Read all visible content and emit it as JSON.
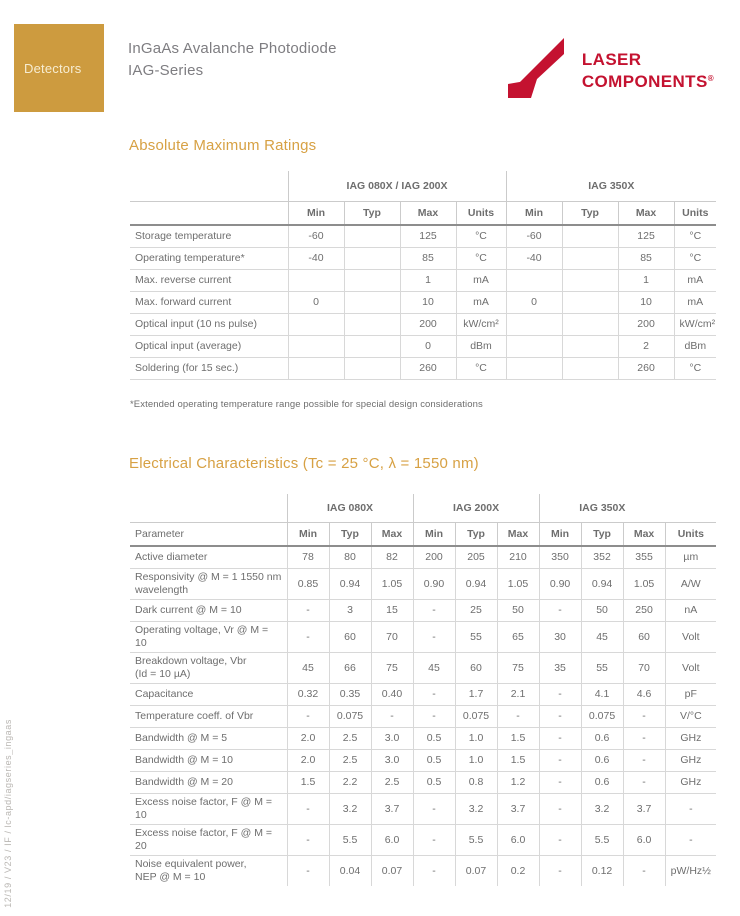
{
  "header": {
    "category": "Detectors",
    "title_line1": "InGaAs Avalanche Photodiode",
    "title_line2": "IAG-Series"
  },
  "logo": {
    "line1": "LASER",
    "line2": "COMPONENTS",
    "registered": "®"
  },
  "colors": {
    "accent_gold": "#D7A144",
    "badge_gold": "#CD9B3F",
    "brand_red": "#C41230"
  },
  "abs_max": {
    "heading": "Absolute Maximum Ratings",
    "footnote": "*Extended operating temperature range possible for special design considerations",
    "table": {
      "groups": [
        "IAG 080X / IAG 200X",
        "IAG 350X"
      ],
      "subheaders": [
        "Min",
        "Typ",
        "Max",
        "Units",
        "Min",
        "Typ",
        "Max",
        "Units"
      ],
      "rows": [
        {
          "label": "Storage temperature",
          "values": [
            "-60",
            "",
            "125",
            "°C",
            "-60",
            "",
            "125",
            "°C"
          ]
        },
        {
          "label": "Operating temperature*",
          "values": [
            "-40",
            "",
            "85",
            "°C",
            "-40",
            "",
            "85",
            "°C"
          ]
        },
        {
          "label": "Max. reverse current",
          "values": [
            "",
            "",
            "1",
            "mA",
            "",
            "",
            "1",
            "mA"
          ]
        },
        {
          "label": "Max. forward current",
          "values": [
            "0",
            "",
            "10",
            "mA",
            "0",
            "",
            "10",
            "mA"
          ]
        },
        {
          "label": "Optical input (10 ns pulse)",
          "values": [
            "",
            "",
            "200",
            "kW/cm²",
            "",
            "",
            "200",
            "kW/cm²"
          ]
        },
        {
          "label": "Optical input (average)",
          "values": [
            "",
            "",
            "0",
            "dBm",
            "",
            "",
            "2",
            "dBm"
          ]
        },
        {
          "label": "Soldering (for 15 sec.)",
          "values": [
            "",
            "",
            "260",
            "°C",
            "",
            "",
            "260",
            "°C"
          ]
        }
      ]
    }
  },
  "electrical": {
    "heading": "Electrical Characteristics (Tc = 25 °C, λ = 1550 nm)",
    "table": {
      "param_header": "Parameter",
      "groups": [
        "IAG 080X",
        "IAG 200X",
        "IAG 350X"
      ],
      "subheaders": [
        "Min",
        "Typ",
        "Max",
        "Min",
        "Typ",
        "Max",
        "Min",
        "Typ",
        "Max",
        "Units"
      ],
      "rows": [
        {
          "label": "Active diameter",
          "values": [
            "78",
            "80",
            "82",
            "200",
            "205",
            "210",
            "350",
            "352",
            "355",
            "µm"
          ]
        },
        {
          "label": "Responsivity @ M = 1 1550 nm\nwavelength",
          "values": [
            "0.85",
            "0.94",
            "1.05",
            "0.90",
            "0.94",
            "1.05",
            "0.90",
            "0.94",
            "1.05",
            "A/W"
          ]
        },
        {
          "label": "Dark current @ M = 10",
          "values": [
            "-",
            "3",
            "15",
            "-",
            "25",
            "50",
            "-",
            "50",
            "250",
            "nA"
          ]
        },
        {
          "label": "Operating voltage, Vr @ M = 10",
          "values": [
            "-",
            "60",
            "70",
            "-",
            "55",
            "65",
            "30",
            "45",
            "60",
            "Volt"
          ]
        },
        {
          "label": "Breakdown voltage, Vbr\n(Id = 10 µA)",
          "values": [
            "45",
            "66",
            "75",
            "45",
            "60",
            "75",
            "35",
            "55",
            "70",
            "Volt"
          ]
        },
        {
          "label": "Capacitance",
          "values": [
            "0.32",
            "0.35",
            "0.40",
            "-",
            "1.7",
            "2.1",
            "-",
            "4.1",
            "4.6",
            "pF"
          ]
        },
        {
          "label": "Temperature coeff. of Vbr",
          "values": [
            "-",
            "0.075",
            "-",
            "-",
            "0.075",
            "-",
            "-",
            "0.075",
            "-",
            "V/°C"
          ]
        },
        {
          "label": "Bandwidth @ M = 5",
          "values": [
            "2.0",
            "2.5",
            "3.0",
            "0.5",
            "1.0",
            "1.5",
            "-",
            "0.6",
            "-",
            "GHz"
          ]
        },
        {
          "label": "Bandwidth @ M = 10",
          "values": [
            "2.0",
            "2.5",
            "3.0",
            "0.5",
            "1.0",
            "1.5",
            "-",
            "0.6",
            "-",
            "GHz"
          ]
        },
        {
          "label": "Bandwidth @ M = 20",
          "values": [
            "1.5",
            "2.2",
            "2.5",
            "0.5",
            "0.8",
            "1.2",
            "-",
            "0.6",
            "-",
            "GHz"
          ]
        },
        {
          "label": "Excess noise factor, F @ M = 10",
          "values": [
            "-",
            "3.2",
            "3.7",
            "-",
            "3.2",
            "3.7",
            "-",
            "3.2",
            "3.7",
            "-"
          ]
        },
        {
          "label": "Excess noise factor, F @ M = 20",
          "values": [
            "-",
            "5.5",
            "6.0",
            "-",
            "5.5",
            "6.0",
            "-",
            "5.5",
            "6.0",
            "-"
          ]
        },
        {
          "label": "Noise equivalent power,\nNEP @ M = 10",
          "values": [
            "-",
            "0.04",
            "0.07",
            "-",
            "0.07",
            "0.2",
            "-",
            "0.12",
            "-",
            "pW/Hz½"
          ]
        }
      ]
    }
  },
  "footer": {
    "vertical_text": "12/19 / V23 / IF / lc-apd/iagseries_ingaas"
  }
}
